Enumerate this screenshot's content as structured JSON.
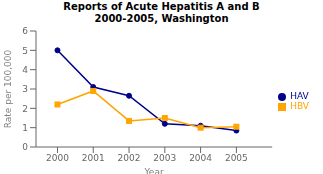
{
  "chart_data": {
    "type": "line",
    "title": "Reports of Acute Hepatitis A and B\n2000-2005, Washington",
    "xlabel": "Year",
    "ylabel": "Rate per 100,000",
    "x": [
      2000,
      2001,
      2002,
      2003,
      2004,
      2005
    ],
    "series": [
      {
        "name": "HAV",
        "color": "#00008B",
        "marker": "circle",
        "values": [
          5.0,
          3.1,
          2.65,
          1.2,
          1.1,
          0.85
        ]
      },
      {
        "name": "HBV",
        "color": "#FFA500",
        "marker": "square",
        "values": [
          2.2,
          2.9,
          1.35,
          1.5,
          1.0,
          1.05
        ]
      }
    ],
    "xlim": [
      1999.4,
      2006.0
    ],
    "xticks": [
      2000,
      2001,
      2002,
      2003,
      2004,
      2005
    ],
    "ylim": [
      0,
      6
    ],
    "yticks": [
      0,
      1,
      2,
      3,
      4,
      5,
      6
    ],
    "grid": false,
    "legend": "right"
  }
}
